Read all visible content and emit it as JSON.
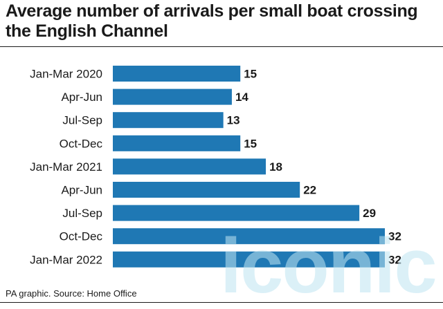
{
  "chart_data": {
    "type": "bar",
    "orientation": "horizontal",
    "title": "Average number of arrivals per small boat crossing the English Channel",
    "categories": [
      "Jan-Mar 2020",
      "Apr-Jun",
      "Jul-Sep",
      "Oct-Dec",
      "Jan-Mar 2021",
      "Apr-Jun",
      "Jul-Sep",
      "Oct-Dec",
      "Jan-Mar 2022"
    ],
    "values": [
      15,
      14,
      13,
      15,
      18,
      22,
      29,
      32,
      32
    ],
    "xlim": [
      0,
      32
    ],
    "grid": false,
    "bar_color": "#1f78b4"
  },
  "footer": {
    "source": "PA graphic. Source: Home Office"
  },
  "watermark": {
    "text": "iconic"
  }
}
